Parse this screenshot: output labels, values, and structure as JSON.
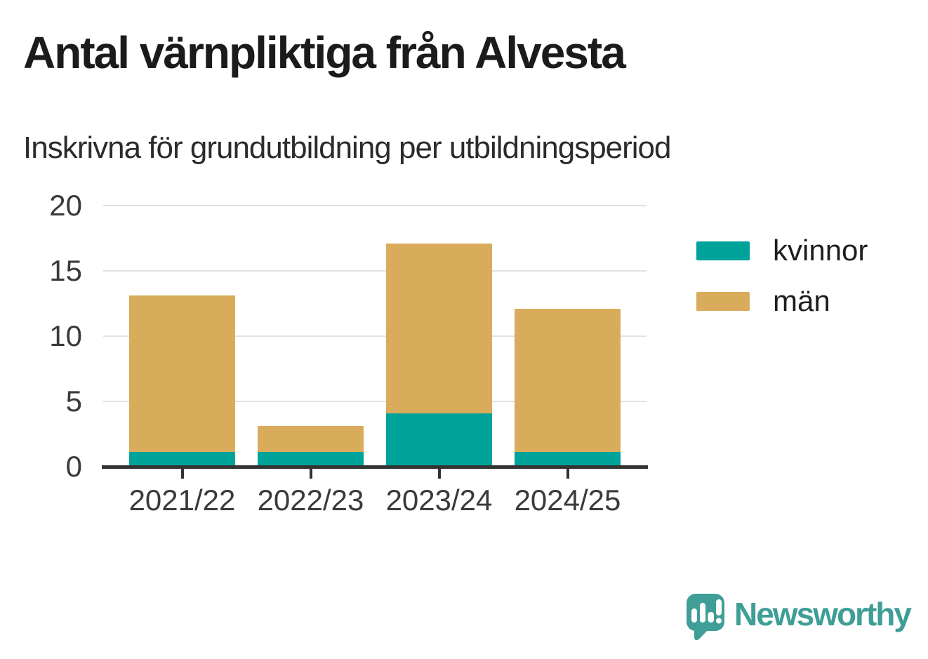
{
  "header": {
    "title": "Antal värnpliktiga från Alvesta",
    "subtitle": "Inskrivna för grundutbildning per utbildningsperiod"
  },
  "chart_data": {
    "type": "bar",
    "stacked": true,
    "title": "Antal värnpliktiga från Alvesta",
    "subtitle": "Inskrivna för grundutbildning per utbildningsperiod",
    "categories": [
      "2021/22",
      "2022/23",
      "2023/24",
      "2024/25"
    ],
    "series": [
      {
        "name": "kvinnor",
        "color": "#00a39a",
        "values": [
          1,
          1,
          4,
          1
        ]
      },
      {
        "name": "män",
        "color": "#d9ac5b",
        "values": [
          12,
          2,
          13,
          11
        ]
      }
    ],
    "stack_totals": [
      13,
      3,
      17,
      12
    ],
    "xlabel": "",
    "ylabel": "",
    "ylim": [
      0,
      20
    ],
    "yticks": [
      0,
      5,
      10,
      15,
      20
    ],
    "grid": true,
    "legend_position": "right"
  },
  "footer": {
    "brand": "Newsworthy",
    "logo_icon": "speech-bubble-bar-chart-icon"
  },
  "colors": {
    "kvinnor": "#00a39a",
    "man": "#d9ac5b",
    "brand_teal": "#3f9e96",
    "axis_line": "#333333",
    "gridline": "#e2e2e2",
    "tick_text": "#3a3a3a",
    "title_text": "#1b1b1b"
  }
}
